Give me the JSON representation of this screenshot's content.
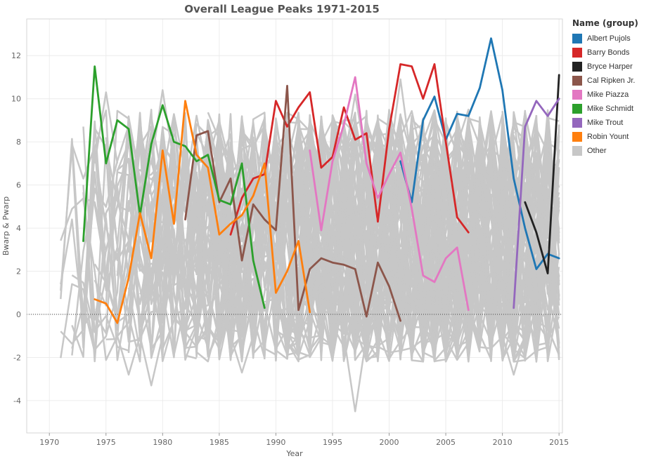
{
  "chart_data": {
    "type": "line",
    "title": "Overall League Peaks 1971-2015",
    "xlabel": "Year",
    "ylabel": "Bwarp & Pwarp",
    "xlim": [
      1968,
      2015.3
    ],
    "ylim": [
      -5.5,
      13.7
    ],
    "x_ticks": [
      "1970",
      "1975",
      "1980",
      "1985",
      "1990",
      "1995",
      "2000",
      "2005",
      "2010",
      "2015"
    ],
    "y_ticks": [
      "-4",
      "-2",
      "0",
      "2",
      "4",
      "6",
      "8",
      "10",
      "12"
    ],
    "gridlines": true,
    "zero_reference_line": true,
    "legend_title": "Name (group)",
    "legend_position": "right",
    "background_band": {
      "name": "Other",
      "color": "#c7c7c7",
      "years": [
        1971,
        2015
      ],
      "typical_range": [
        -2.2,
        9.5
      ],
      "low_outliers": [
        [
          1997,
          -4.5
        ],
        [
          1979,
          -3.3
        ],
        [
          1977,
          -2.8
        ],
        [
          1987,
          -2.7
        ],
        [
          2011,
          -2.8
        ]
      ],
      "high_outliers": [
        [
          1980,
          10.4
        ],
        [
          1975,
          10.3
        ],
        [
          2001,
          10.9
        ],
        [
          1997,
          10.2
        ]
      ]
    },
    "series": [
      {
        "name": "Albert Pujols",
        "color": "#1f77b4",
        "x": [
          2001,
          2002,
          2003,
          2004,
          2005,
          2006,
          2007,
          2008,
          2009,
          2010,
          2011,
          2012,
          2013,
          2014,
          2015
        ],
        "y": [
          7.1,
          5.2,
          9.0,
          10.1,
          8.1,
          9.3,
          9.2,
          10.5,
          12.8,
          10.4,
          6.3,
          4.0,
          2.1,
          2.8,
          2.6
        ]
      },
      {
        "name": "Barry Bonds",
        "color": "#d62728",
        "x": [
          1986,
          1987,
          1988,
          1989,
          1990,
          1991,
          1992,
          1993,
          1994,
          1995,
          1996,
          1997,
          1998,
          1999,
          2000,
          2001,
          2002,
          2003,
          2004,
          2005,
          2006,
          2007
        ],
        "y": [
          3.7,
          5.4,
          6.3,
          6.5,
          9.9,
          8.7,
          9.6,
          10.3,
          6.8,
          7.3,
          9.6,
          8.1,
          8.4,
          4.3,
          8.6,
          11.6,
          11.5,
          10.0,
          11.6,
          8.0,
          4.5,
          3.8
        ]
      },
      {
        "name": "Bryce Harper",
        "color": "#222222",
        "x": [
          2012,
          2013,
          2014,
          2015
        ],
        "y": [
          5.2,
          3.8,
          1.9,
          11.1
        ]
      },
      {
        "name": "Cal Ripken Jr.",
        "color": "#8c564b",
        "x": [
          1982,
          1983,
          1984,
          1985,
          1986,
          1987,
          1988,
          1989,
          1990,
          1991,
          1992,
          1993,
          1994,
          1995,
          1996,
          1997,
          1998,
          1999,
          2000,
          2001
        ],
        "y": [
          4.4,
          8.3,
          8.5,
          5.2,
          6.3,
          2.5,
          5.1,
          4.4,
          3.9,
          10.6,
          0.2,
          2.1,
          2.6,
          2.4,
          2.3,
          2.1,
          -0.1,
          2.4,
          1.3,
          -0.3
        ]
      },
      {
        "name": "Mike Piazza",
        "color": "#e377c2",
        "x": [
          1993,
          1994,
          1995,
          1996,
          1997,
          1998,
          1999,
          2000,
          2001,
          2002,
          2003,
          2004,
          2005,
          2006,
          2007
        ],
        "y": [
          7.6,
          3.9,
          7.1,
          8.8,
          11.0,
          7.0,
          5.4,
          6.5,
          7.5,
          4.9,
          1.8,
          1.5,
          2.6,
          3.1,
          0.2
        ]
      },
      {
        "name": "Mike Schmidt",
        "color": "#2ca02c",
        "x": [
          1973,
          1974,
          1975,
          1976,
          1977,
          1978,
          1979,
          1980,
          1981,
          1982,
          1983,
          1984,
          1985,
          1986,
          1987,
          1988,
          1989
        ],
        "y": [
          3.4,
          11.5,
          7.0,
          9.0,
          8.6,
          4.6,
          7.9,
          9.7,
          8.0,
          7.8,
          7.1,
          7.4,
          5.3,
          5.1,
          7.0,
          2.5,
          0.3
        ]
      },
      {
        "name": "Mike Trout",
        "color": "#9467bd",
        "x": [
          2011,
          2012,
          2013,
          2014,
          2015
        ],
        "y": [
          0.3,
          8.7,
          9.9,
          9.2,
          10.0
        ]
      },
      {
        "name": "Robin Yount",
        "color": "#ff7f0e",
        "x": [
          1974,
          1975,
          1976,
          1977,
          1978,
          1979,
          1980,
          1981,
          1982,
          1983,
          1984,
          1985,
          1986,
          1987,
          1988,
          1989,
          1990,
          1991,
          1992,
          1993
        ],
        "y": [
          0.7,
          0.5,
          -0.4,
          1.7,
          4.7,
          2.6,
          7.6,
          4.2,
          9.9,
          7.4,
          6.8,
          3.7,
          4.2,
          4.6,
          5.5,
          7.0,
          1.0,
          2.0,
          3.4,
          0.1
        ]
      },
      {
        "name": "Other",
        "color": "#c7c7c7",
        "x": [],
        "y": []
      }
    ]
  }
}
